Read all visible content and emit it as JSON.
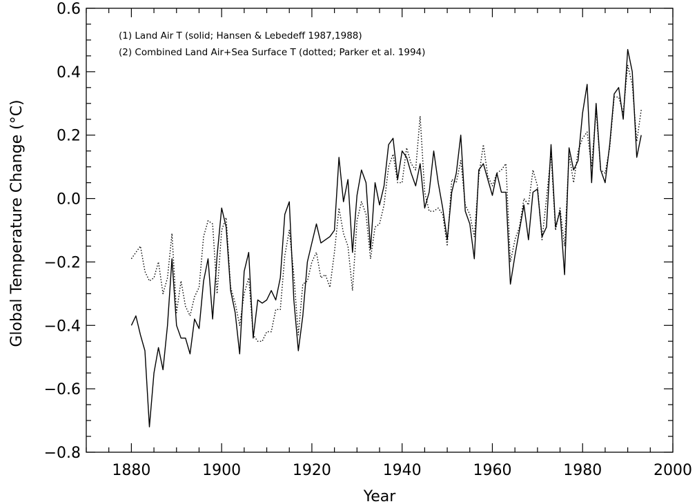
{
  "chart_data": {
    "type": "line",
    "title": "",
    "xlabel": "Year",
    "ylabel": "Global Temperature Change (°C)",
    "xlim": [
      1870,
      2000
    ],
    "ylim": [
      -0.8,
      0.6
    ],
    "x_ticks": [
      1880,
      1900,
      1920,
      1940,
      1960,
      1980,
      2000
    ],
    "y_ticks": [
      {
        "value": -0.8,
        "label": "−0.8"
      },
      {
        "value": -0.6,
        "label": "−0.6"
      },
      {
        "value": -0.4,
        "label": "−0.4"
      },
      {
        "value": -0.2,
        "label": "−0.2"
      },
      {
        "value": 0.0,
        "label": "0.0"
      },
      {
        "value": 0.2,
        "label": "0.2"
      },
      {
        "value": 0.4,
        "label": "0.4"
      },
      {
        "value": 0.6,
        "label": "0.6"
      }
    ],
    "grid": false,
    "legend_position": "top-left",
    "legend": [
      "(1) Land Air T (solid; Hansen & Lebedeff 1987,1988)",
      "(2) Combined Land Air+Sea Surface T (dotted; Parker et al. 1994)"
    ],
    "x": [
      1880,
      1881,
      1882,
      1883,
      1884,
      1885,
      1886,
      1887,
      1888,
      1889,
      1890,
      1891,
      1892,
      1893,
      1894,
      1895,
      1896,
      1897,
      1898,
      1899,
      1900,
      1901,
      1902,
      1903,
      1904,
      1905,
      1906,
      1907,
      1908,
      1909,
      1910,
      1911,
      1912,
      1913,
      1914,
      1915,
      1916,
      1917,
      1918,
      1919,
      1920,
      1921,
      1922,
      1923,
      1924,
      1925,
      1926,
      1927,
      1928,
      1929,
      1930,
      1931,
      1932,
      1933,
      1934,
      1935,
      1936,
      1937,
      1938,
      1939,
      1940,
      1941,
      1942,
      1943,
      1944,
      1945,
      1946,
      1947,
      1948,
      1949,
      1950,
      1951,
      1952,
      1953,
      1954,
      1955,
      1956,
      1957,
      1958,
      1959,
      1960,
      1961,
      1962,
      1963,
      1964,
      1965,
      1966,
      1967,
      1968,
      1969,
      1970,
      1971,
      1972,
      1973,
      1974,
      1975,
      1976,
      1977,
      1978,
      1979,
      1980,
      1981,
      1982,
      1983,
      1984,
      1985,
      1986,
      1987,
      1988,
      1989,
      1990,
      1991,
      1992,
      1993
    ],
    "series": [
      {
        "style": "solid",
        "color": "#000000",
        "values": [
          -0.4,
          -0.37,
          -0.43,
          -0.48,
          -0.72,
          -0.55,
          -0.47,
          -0.54,
          -0.4,
          -0.19,
          -0.4,
          -0.44,
          -0.44,
          -0.49,
          -0.38,
          -0.41,
          -0.26,
          -0.19,
          -0.38,
          -0.18,
          -0.03,
          -0.09,
          -0.29,
          -0.36,
          -0.49,
          -0.23,
          -0.17,
          -0.44,
          -0.32,
          -0.33,
          -0.32,
          -0.29,
          -0.32,
          -0.25,
          -0.05,
          -0.01,
          -0.32,
          -0.48,
          -0.37,
          -0.2,
          -0.14,
          -0.08,
          -0.14,
          -0.13,
          -0.12,
          -0.1,
          0.13,
          -0.01,
          0.06,
          -0.17,
          0.01,
          0.09,
          0.05,
          -0.16,
          0.05,
          -0.02,
          0.04,
          0.17,
          0.19,
          0.06,
          0.15,
          0.13,
          0.08,
          0.04,
          0.11,
          -0.03,
          0.02,
          0.15,
          0.05,
          -0.03,
          -0.13,
          0.02,
          0.08,
          0.2,
          -0.04,
          -0.08,
          -0.19,
          0.09,
          0.11,
          0.06,
          0.01,
          0.08,
          0.02,
          0.02,
          -0.27,
          -0.18,
          -0.1,
          -0.02,
          -0.13,
          0.02,
          0.03,
          -0.12,
          -0.09,
          0.17,
          -0.09,
          -0.04,
          -0.24,
          0.16,
          0.09,
          0.12,
          0.27,
          0.36,
          0.05,
          0.3,
          0.09,
          0.05,
          0.17,
          0.33,
          0.35,
          0.25,
          0.47,
          0.4,
          0.13,
          0.2
        ]
      },
      {
        "style": "dotted",
        "color": "#000000",
        "values": [
          -0.19,
          -0.17,
          -0.15,
          -0.23,
          -0.26,
          -0.25,
          -0.2,
          -0.3,
          -0.25,
          -0.11,
          -0.36,
          -0.26,
          -0.34,
          -0.37,
          -0.31,
          -0.28,
          -0.12,
          -0.07,
          -0.08,
          -0.3,
          -0.1,
          -0.06,
          -0.28,
          -0.33,
          -0.4,
          -0.3,
          -0.25,
          -0.43,
          -0.45,
          -0.45,
          -0.42,
          -0.42,
          -0.35,
          -0.35,
          -0.18,
          -0.1,
          -0.24,
          -0.43,
          -0.27,
          -0.26,
          -0.2,
          -0.17,
          -0.25,
          -0.24,
          -0.28,
          -0.17,
          -0.03,
          -0.11,
          -0.15,
          -0.29,
          -0.07,
          -0.01,
          -0.05,
          -0.19,
          -0.09,
          -0.08,
          -0.02,
          0.1,
          0.14,
          0.05,
          0.05,
          0.16,
          0.11,
          0.09,
          0.26,
          0.02,
          -0.04,
          -0.04,
          -0.03,
          -0.05,
          -0.15,
          0.06,
          0.05,
          0.12,
          -0.02,
          -0.05,
          -0.12,
          0.07,
          0.17,
          0.07,
          0.04,
          0.08,
          0.09,
          0.11,
          -0.2,
          -0.13,
          -0.09,
          0.0,
          -0.02,
          0.09,
          0.04,
          -0.13,
          0.0,
          0.14,
          -0.1,
          -0.03,
          -0.15,
          0.14,
          0.05,
          0.15,
          0.19,
          0.21,
          0.1,
          0.28,
          0.09,
          0.08,
          0.16,
          0.32,
          0.32,
          0.27,
          0.42,
          0.36,
          0.18,
          0.28
        ]
      }
    ]
  }
}
